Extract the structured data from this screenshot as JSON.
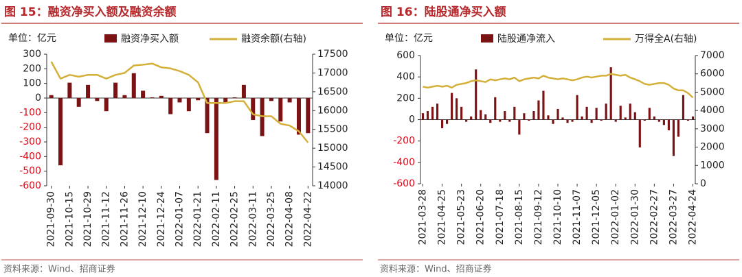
{
  "chart_data": [
    {
      "type": "combo",
      "title": "图 15：融资净买入额及融资余额",
      "unit_label": "单位：亿元",
      "source": "资料来源：Wind、招商证券",
      "categories": [
        "2021-09-30",
        null,
        "2021-10-15",
        null,
        "2021-10-29",
        null,
        "2021-11-12",
        null,
        "2021-11-26",
        null,
        "2021-12-10",
        null,
        "2021-12-24",
        null,
        "2022-01-07",
        null,
        "2022-01-21",
        null,
        "2022-02-11",
        null,
        "2022-02-25",
        null,
        "2022-03-11",
        null,
        "2022-03-25",
        null,
        "2022-04-08",
        null,
        "2022-04-22"
      ],
      "series": [
        {
          "name": "融资净买入额",
          "type": "bar",
          "color": "#7b1315",
          "values": [
            20,
            -460,
            105,
            -60,
            90,
            -20,
            -90,
            105,
            20,
            170,
            50,
            5,
            15,
            -110,
            -30,
            -90,
            -15,
            -240,
            -560,
            -30,
            5,
            90,
            -150,
            -260,
            -20,
            -160,
            -30,
            -250,
            -240
          ]
        },
        {
          "name": "融资余额(右轴)",
          "type": "line",
          "color": "#d4b03a",
          "axis": "y2",
          "values": [
            17300,
            16850,
            16950,
            16900,
            16950,
            16950,
            16850,
            16950,
            17000,
            17200,
            17220,
            17250,
            17150,
            17120,
            17050,
            16950,
            16750,
            16200,
            16200,
            16200,
            16250,
            16250,
            15900,
            15850,
            15850,
            15650,
            15600,
            15450,
            15150
          ]
        }
      ],
      "ylim": [
        -600,
        300
      ],
      "yticks": [
        -600,
        -500,
        -400,
        -300,
        -200,
        -100,
        0,
        100,
        200,
        300
      ],
      "y2lim": [
        14000,
        17500
      ],
      "y2ticks": [
        14000,
        14500,
        15000,
        15500,
        16000,
        16500,
        17000,
        17500
      ]
    },
    {
      "type": "combo",
      "title": "图 16：陆股通净买入额",
      "unit_label": "单位：亿元",
      "source": "资料来源：Wind、招商证券",
      "categories": [
        "2021-03-28",
        null,
        null,
        null,
        "2021-04-25",
        null,
        null,
        null,
        "2021-05-23",
        null,
        null,
        null,
        "2021-06-20",
        null,
        null,
        null,
        "2021-07-18",
        null,
        null,
        null,
        "2021-08-15",
        null,
        null,
        null,
        "2021-09-12",
        null,
        null,
        null,
        "2021-10-10",
        null,
        null,
        null,
        "2021-11-07",
        null,
        null,
        null,
        "2021-12-05",
        null,
        null,
        null,
        "2022-01-02",
        null,
        null,
        null,
        "2022-01-30",
        null,
        null,
        null,
        "2022-02-27",
        null,
        null,
        null,
        "2022-03-27",
        null,
        null,
        null,
        "2022-04-24"
      ],
      "series": [
        {
          "name": "陆股通净流入",
          "type": "bar",
          "color": "#7b1315",
          "values": [
            60,
            80,
            120,
            150,
            -80,
            -40,
            250,
            200,
            120,
            -20,
            30,
            470,
            90,
            50,
            -30,
            210,
            -20,
            80,
            -20,
            120,
            -140,
            60,
            -10,
            80,
            180,
            270,
            40,
            -40,
            100,
            20,
            -30,
            -20,
            230,
            30,
            120,
            -30,
            110,
            -10,
            150,
            490,
            -20,
            130,
            20,
            150,
            70,
            -260,
            -10,
            110,
            30,
            -20,
            -50,
            -100,
            -340,
            -160,
            230,
            -10,
            30
          ]
        },
        {
          "name": "万得全A(右轴)",
          "type": "line",
          "color": "#d4b03a",
          "axis": "y2",
          "values": [
            5300,
            5250,
            5300,
            5350,
            5300,
            5350,
            5250,
            5400,
            5450,
            5500,
            5600,
            5650,
            5600,
            5550,
            5700,
            5650,
            5700,
            5750,
            5700,
            5800,
            5600,
            5700,
            5750,
            5800,
            5750,
            5900,
            5800,
            5750,
            5700,
            5750,
            5700,
            5650,
            5700,
            5800,
            5850,
            5800,
            5850,
            5900,
            5900,
            6000,
            5950,
            5900,
            5950,
            5800,
            5700,
            5600,
            5450,
            5400,
            5450,
            5500,
            5500,
            5400,
            5200,
            5100,
            5100,
            4950,
            4700
          ]
        }
      ],
      "ylim": [
        -600,
        600
      ],
      "yticks": [
        -600,
        -400,
        -200,
        0,
        200,
        400,
        600
      ],
      "y2lim": [
        0,
        7000
      ],
      "y2ticks": [
        0,
        1000,
        2000,
        3000,
        4000,
        5000,
        6000,
        7000
      ]
    }
  ]
}
